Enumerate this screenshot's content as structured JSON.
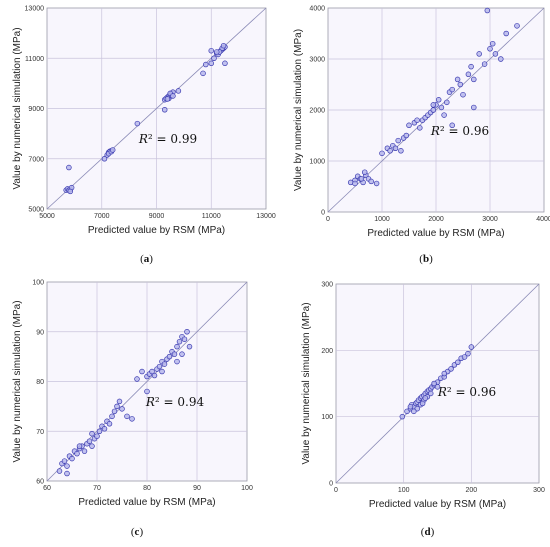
{
  "chart_data": [
    {
      "type": "scatter",
      "caption": "(a)",
      "xlabel": "Predicted value by RSM (MPa)",
      "ylabel": "Value by numerical simulation (MPa)",
      "annotation": "R² = 0.99",
      "xlim": [
        5000,
        13000
      ],
      "ylim": [
        5000,
        13000
      ],
      "xticks": [
        5000,
        7000,
        9000,
        11000,
        13000
      ],
      "yticks": [
        5000,
        7000,
        9000,
        11000,
        13000
      ],
      "grid": true,
      "reference_line": "y = x",
      "colors": {
        "point_fill": "#b7b7ec",
        "point_stroke": "#3a3ab0",
        "background": "#f8f6fd",
        "grid": "#c9c3dc"
      },
      "x": [
        5700,
        5750,
        5800,
        5850,
        5900,
        5800,
        7100,
        7200,
        7250,
        7300,
        7350,
        7300,
        7250,
        7350,
        7400,
        8300,
        9300,
        9350,
        9400,
        9450,
        9500,
        9550,
        9600,
        9450,
        9500,
        9550,
        9400,
        9500,
        9800,
        9300,
        10700,
        10800,
        11000,
        11100,
        11200,
        11250,
        11300,
        11350,
        11400,
        11450,
        11500,
        11400,
        11300,
        11200,
        11450,
        11000,
        11500,
        5850,
        9600
      ],
      "y": [
        5750,
        5800,
        5750,
        5780,
        5850,
        6650,
        7000,
        7150,
        7250,
        7300,
        7320,
        7280,
        7200,
        7280,
        7350,
        8400,
        9350,
        9400,
        9450,
        9500,
        9550,
        9600,
        9650,
        9400,
        9480,
        9520,
        9380,
        9600,
        9700,
        8950,
        10400,
        10750,
        10800,
        11000,
        11200,
        11150,
        11250,
        11300,
        11350,
        11400,
        11450,
        11400,
        11250,
        11250,
        11500,
        11300,
        10800,
        5700,
        9500
      ]
    },
    {
      "type": "scatter",
      "caption": "(b)",
      "xlabel": "Predicted value by RSM (MPa)",
      "ylabel": "Value by numerical simulation (MPa)",
      "annotation": "R² = 0.96",
      "xlim": [
        0,
        4000
      ],
      "ylim": [
        0,
        4000
      ],
      "xticks": [
        0,
        1000,
        2000,
        3000,
        4000
      ],
      "yticks": [
        0,
        1000,
        2000,
        3000,
        4000
      ],
      "grid": true,
      "reference_line": "y = x",
      "colors": {
        "point_fill": "#b7b7ec",
        "point_stroke": "#3a3ab0",
        "background": "#f8f6fd",
        "grid": "#c9c3dc"
      },
      "x": [
        420,
        500,
        550,
        600,
        650,
        700,
        750,
        800,
        900,
        500,
        620,
        680,
        1000,
        1100,
        1150,
        1200,
        1250,
        1300,
        1350,
        1400,
        1450,
        1500,
        1600,
        1650,
        1700,
        1750,
        1800,
        1850,
        1900,
        1950,
        2000,
        2050,
        2100,
        2150,
        2200,
        2250,
        2300,
        2400,
        2450,
        2500,
        2600,
        2650,
        2700,
        2800,
        2900,
        3000,
        3050,
        3100,
        3200,
        3300,
        3500,
        2950,
        2700,
        1950,
        2300
      ],
      "y": [
        580,
        620,
        700,
        650,
        580,
        720,
        650,
        600,
        560,
        560,
        650,
        780,
        1150,
        1250,
        1200,
        1300,
        1250,
        1400,
        1200,
        1450,
        1500,
        1700,
        1750,
        1800,
        1650,
        1800,
        1850,
        1900,
        1950,
        2000,
        2100,
        2200,
        2050,
        1900,
        2150,
        2350,
        2400,
        2600,
        2500,
        2300,
        2700,
        2850,
        2600,
        3100,
        2900,
        3200,
        3300,
        3100,
        3000,
        3500,
        3650,
        3950,
        2050,
        2100,
        1700
      ]
    },
    {
      "type": "scatter",
      "caption": "(c)",
      "xlabel": "Predicted value by RSM (MPa)",
      "ylabel": "Value by numerical simulation (MPa)",
      "annotation": "R² = 0.94",
      "xlim": [
        60,
        100
      ],
      "ylim": [
        60,
        100
      ],
      "xticks": [
        60,
        70,
        80,
        90,
        100
      ],
      "yticks": [
        60,
        70,
        80,
        90,
        100
      ],
      "grid": true,
      "reference_line": "y = x",
      "colors": {
        "point_fill": "#b7b7ec",
        "point_stroke": "#3a3ab0",
        "background": "#f8f6fd",
        "grid": "#c9c3dc"
      },
      "x": [
        62.5,
        63,
        63.5,
        64,
        64.5,
        65,
        65.5,
        66,
        66.5,
        67,
        67.5,
        68,
        68.5,
        69,
        69.5,
        70,
        70.5,
        71,
        71.5,
        72,
        72.5,
        73,
        73.5,
        74,
        74.5,
        75,
        76,
        77,
        78,
        79,
        80,
        80.5,
        81,
        81.5,
        82,
        82.5,
        83,
        83.5,
        84,
        84.5,
        85,
        85.5,
        86,
        86.5,
        87,
        87.5,
        88,
        88.5,
        83,
        86,
        87,
        64,
        66.5,
        69,
        80
      ],
      "y": [
        62,
        63.5,
        64,
        63,
        65,
        64.5,
        66,
        65.5,
        66.5,
        67,
        66,
        67.5,
        68,
        67,
        68.5,
        69,
        70,
        71,
        70.5,
        72,
        71.5,
        73,
        74,
        75,
        76,
        74.5,
        73,
        72.5,
        80.5,
        82,
        81,
        81.5,
        82,
        81.2,
        82.5,
        83,
        84,
        83.5,
        84.5,
        85,
        86,
        85.5,
        87,
        88,
        89,
        88.5,
        90,
        87,
        82,
        84,
        85.5,
        61.5,
        67,
        69.5,
        78
      ]
    },
    {
      "type": "scatter",
      "caption": "(d)",
      "xlabel": "Predicted value by RSM (MPa)",
      "ylabel": "Value by numerical simulation (MPa)",
      "annotation": "R² = 0.96",
      "xlim": [
        0,
        300
      ],
      "ylim": [
        0,
        300
      ],
      "xticks": [
        0,
        100,
        200,
        300
      ],
      "yticks": [
        0,
        100,
        200,
        300
      ],
      "grid": true,
      "reference_line": "y = x",
      "colors": {
        "point_fill": "#b7b7ec",
        "point_stroke": "#3a3ab0",
        "background": "#f8f6fd",
        "grid": "#c9c3dc"
      },
      "x": [
        98,
        105,
        110,
        112,
        115,
        118,
        120,
        122,
        125,
        127,
        130,
        132,
        135,
        137,
        140,
        142,
        145,
        150,
        155,
        160,
        165,
        170,
        175,
        180,
        185,
        190,
        195,
        200,
        120,
        125,
        130,
        135,
        140,
        115,
        128,
        145,
        150,
        160,
        110,
        132
      ],
      "y": [
        100,
        108,
        112,
        118,
        115,
        120,
        122,
        125,
        128,
        130,
        132,
        135,
        138,
        140,
        142,
        145,
        148,
        152,
        158,
        160,
        168,
        172,
        178,
        182,
        188,
        190,
        195,
        205,
        112,
        118,
        125,
        130,
        135,
        108,
        120,
        150,
        145,
        165,
        115,
        128
      ]
    }
  ]
}
